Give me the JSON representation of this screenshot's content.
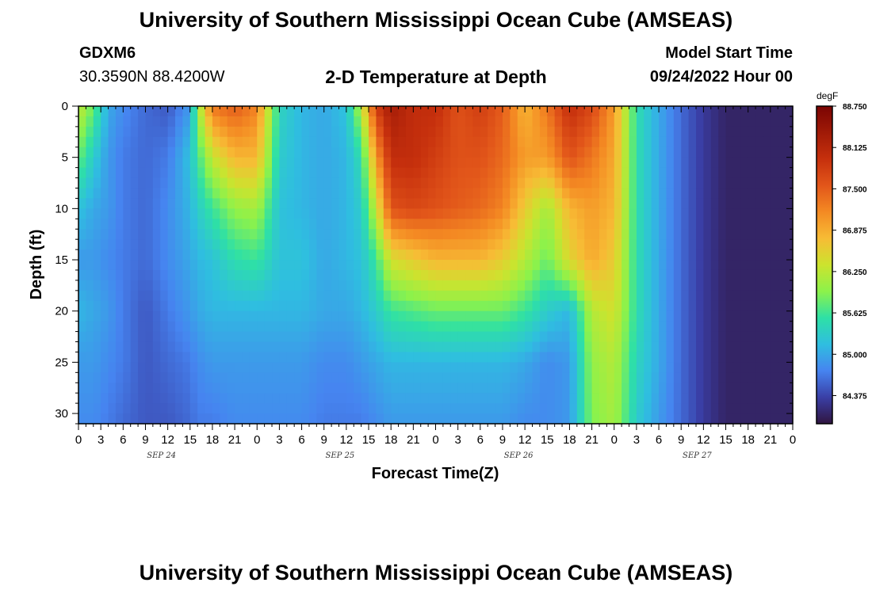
{
  "header": {
    "title": "University of Southern Mississippi Ocean Cube (AMSEAS)",
    "station": "GDXM6",
    "coords": "30.3590N  88.4200W",
    "subtitle": "2-D Temperature at Depth",
    "model_label": "Model Start Time",
    "model_value": "09/24/2022 Hour 00"
  },
  "footer": {
    "title": "University of Southern Mississippi Ocean Cube (AMSEAS)"
  },
  "chart_data": {
    "type": "heatmap",
    "title": "2-D Temperature at Depth",
    "xlabel": "Forecast Time(Z)",
    "ylabel": "Depth (ft)",
    "x_ticks": [
      "0",
      "3",
      "6",
      "9",
      "12",
      "15",
      "18",
      "21",
      "0",
      "3",
      "6",
      "9",
      "12",
      "15",
      "18",
      "21",
      "0",
      "3",
      "6",
      "9",
      "12",
      "15",
      "18",
      "21",
      "0",
      "3",
      "6",
      "9",
      "12",
      "15",
      "18",
      "21",
      "0"
    ],
    "x_dates": [
      "SEP 24",
      "SEP 25",
      "SEP 26",
      "SEP 27"
    ],
    "x_range_hours": [
      0,
      96
    ],
    "y_ticks": [
      "0",
      "5",
      "10",
      "15",
      "20",
      "25",
      "30"
    ],
    "y_range_ft": [
      0,
      31
    ],
    "colorbar": {
      "unit": "degF",
      "ticks": [
        "88.750",
        "88.125",
        "87.500",
        "86.875",
        "86.250",
        "85.625",
        "85.000",
        "84.375"
      ],
      "range": [
        83.95,
        88.75
      ],
      "colors": [
        "#301540",
        "#3a3fa6",
        "#4684f0",
        "#2fbee0",
        "#2ee0a6",
        "#8cf24b",
        "#cce32e",
        "#f7bc35",
        "#f48a23",
        "#e2561a",
        "#c6300d",
        "#a01a07",
        "#7a0403"
      ]
    },
    "depths_ft": [
      0,
      5,
      10,
      15,
      20,
      25,
      31
    ],
    "times_hours": [
      0,
      2,
      4,
      6,
      9,
      12,
      15,
      16,
      18,
      21,
      24,
      27,
      30,
      33,
      36,
      38,
      40,
      42,
      45,
      48,
      51,
      54,
      57,
      60,
      63,
      66,
      69,
      72,
      75,
      78,
      81,
      84,
      87,
      90,
      93,
      96
    ],
    "values_degF": [
      [
        86.3,
        85.8,
        85.0,
        84.8,
        84.6,
        84.5,
        84.9,
        86.0,
        87.3,
        87.5,
        87.2,
        85.4,
        85.1,
        85.0,
        85.2,
        86.2,
        87.8,
        88.3,
        88.0,
        88.0,
        87.6,
        87.8,
        87.5,
        86.8,
        87.3,
        88.0,
        87.7,
        87.0,
        85.5,
        85.0,
        84.6,
        84.3,
        84.1,
        84.1,
        84.1,
        84.1
      ],
      [
        85.8,
        85.3,
        84.9,
        84.7,
        84.6,
        84.7,
        85.2,
        85.6,
        86.3,
        86.8,
        86.8,
        85.3,
        85.1,
        85.0,
        85.1,
        85.5,
        87.0,
        88.0,
        88.0,
        87.8,
        87.6,
        87.6,
        87.4,
        87.0,
        87.0,
        87.6,
        87.3,
        86.9,
        85.5,
        85.0,
        84.6,
        84.3,
        84.1,
        84.1,
        84.1,
        84.1
      ],
      [
        85.2,
        85.0,
        84.9,
        84.7,
        84.6,
        84.8,
        85.1,
        85.3,
        85.6,
        86.0,
        86.1,
        85.2,
        85.1,
        85.0,
        85.1,
        85.3,
        86.3,
        87.6,
        87.7,
        87.6,
        87.5,
        87.4,
        87.2,
        86.6,
        86.1,
        86.8,
        87.0,
        86.8,
        85.5,
        85.0,
        84.6,
        84.3,
        84.1,
        84.1,
        84.1,
        84.1
      ],
      [
        84.9,
        84.9,
        84.8,
        84.7,
        84.6,
        84.8,
        85.0,
        85.1,
        85.2,
        85.5,
        85.6,
        85.2,
        85.2,
        85.0,
        85.1,
        85.2,
        85.6,
        86.4,
        86.6,
        86.8,
        86.8,
        86.8,
        86.6,
        86.2,
        85.8,
        86.5,
        86.9,
        86.6,
        85.5,
        85.0,
        84.6,
        84.3,
        84.1,
        84.1,
        84.1,
        84.1
      ],
      [
        85.1,
        85.0,
        84.9,
        84.7,
        84.5,
        84.7,
        84.9,
        85.0,
        85.1,
        85.1,
        85.1,
        85.1,
        85.1,
        85.0,
        85.0,
        85.1,
        85.3,
        85.6,
        85.7,
        85.8,
        85.8,
        85.8,
        85.8,
        85.6,
        85.3,
        85.1,
        86.2,
        86.4,
        85.5,
        85.0,
        84.6,
        84.3,
        84.1,
        84.1,
        84.1,
        84.1
      ],
      [
        84.9,
        84.9,
        84.8,
        84.7,
        84.5,
        84.6,
        84.7,
        84.8,
        84.9,
        84.9,
        84.9,
        84.9,
        84.9,
        84.8,
        84.8,
        84.9,
        85.0,
        85.1,
        85.1,
        85.1,
        85.1,
        85.1,
        85.1,
        85.0,
        84.8,
        84.9,
        86.0,
        86.2,
        85.4,
        85.0,
        84.6,
        84.3,
        84.1,
        84.1,
        84.1,
        84.1
      ],
      [
        84.8,
        84.8,
        84.7,
        84.6,
        84.5,
        84.5,
        84.6,
        84.7,
        84.7,
        84.8,
        84.8,
        84.8,
        84.8,
        84.7,
        84.7,
        84.7,
        84.8,
        84.9,
        84.9,
        84.9,
        84.9,
        84.9,
        84.9,
        84.8,
        84.8,
        84.9,
        85.9,
        86.1,
        85.3,
        84.9,
        84.6,
        84.3,
        84.1,
        84.1,
        84.1,
        84.1
      ]
    ]
  }
}
